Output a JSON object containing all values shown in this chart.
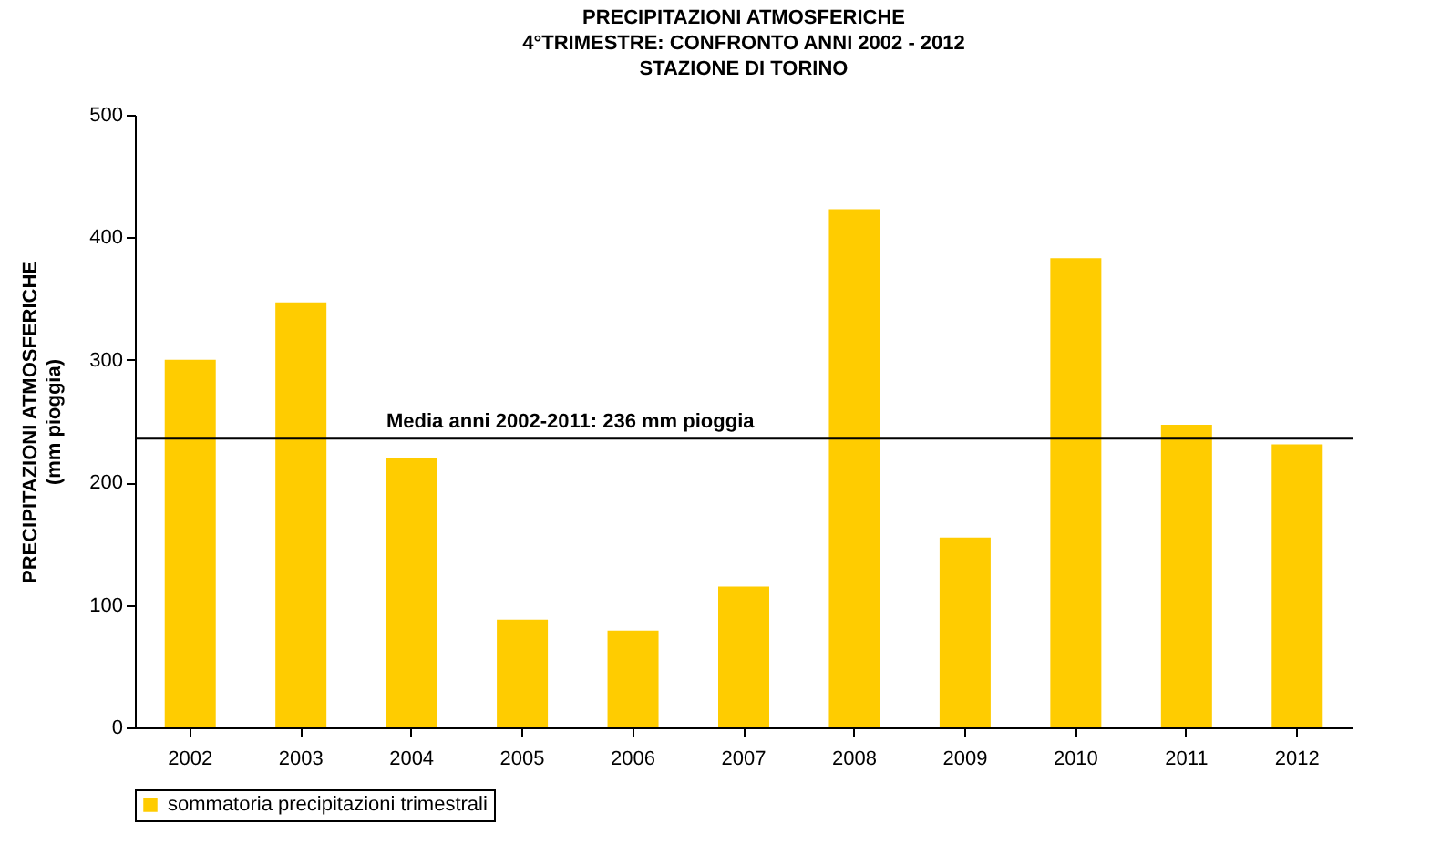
{
  "chart_data": {
    "type": "bar",
    "title": "PRECIPITAZIONI ATMOSFERICHE\n4°TRIMESTRE: CONFRONTO ANNI 2002 - 2012\nSTAZIONE DI TORINO",
    "ylabel": "PRECIPITAZIONI ATMOSFERICHE\n(mm pioggia)",
    "categories": [
      "2002",
      "2003",
      "2004",
      "2005",
      "2006",
      "2007",
      "2008",
      "2009",
      "2010",
      "2011",
      "2012"
    ],
    "series": [
      {
        "name": "sommatoria precipitazioni trimestrali",
        "color": "#ffcc00",
        "values": [
          300,
          347,
          220,
          88,
          79,
          115,
          423,
          155,
          383,
          247,
          231
        ]
      }
    ],
    "ylim": [
      0,
      500
    ],
    "yticks": [
      0,
      100,
      200,
      300,
      400,
      500
    ],
    "grid": false,
    "legend": "bottom",
    "ref_lines": [
      {
        "axis": "y",
        "value": 236,
        "label": "Media anni 2002-2011: 236 mm pioggia",
        "color": "#000000"
      }
    ]
  }
}
